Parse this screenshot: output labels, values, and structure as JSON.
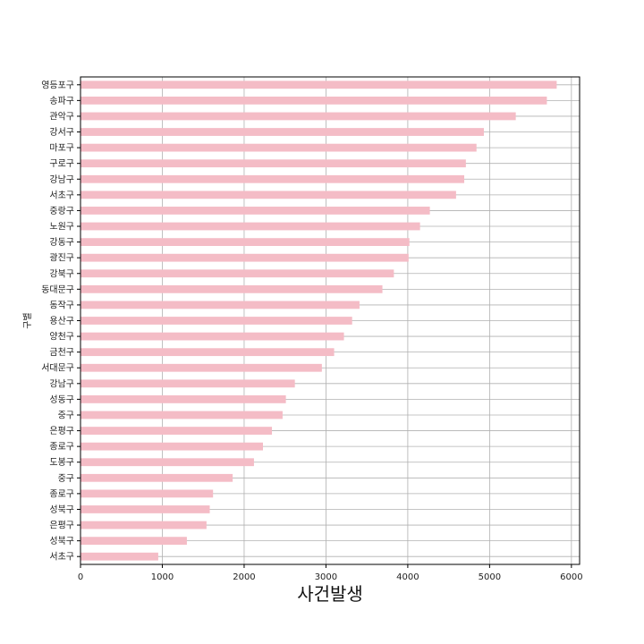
{
  "chart_data": {
    "type": "bar",
    "orientation": "horizontal",
    "xlabel": "사건발생",
    "ylabel": "구별",
    "xlim": [
      0,
      6100
    ],
    "xticks": [
      0,
      1000,
      2000,
      3000,
      4000,
      5000,
      6000
    ],
    "grid": true,
    "bar_color": "#f4bcc6",
    "categories": [
      "영등포구",
      "송파구",
      "관악구",
      "강서구",
      "마포구",
      "구로구",
      "강남구",
      "서초구",
      "중랑구",
      "노원구",
      "강동구",
      "광진구",
      "강북구",
      "동대문구",
      "동작구",
      "용산구",
      "양천구",
      "금천구",
      "서대문구",
      "강남구",
      "성동구",
      "중구",
      "은평구",
      "종로구",
      "도봉구",
      "중구",
      "종로구",
      "성북구",
      "은평구",
      "성북구",
      "서초구"
    ],
    "values": [
      5820,
      5700,
      5320,
      4930,
      4840,
      4710,
      4690,
      4590,
      4270,
      4150,
      4020,
      4010,
      3830,
      3690,
      3410,
      3320,
      3220,
      3100,
      2950,
      2620,
      2510,
      2470,
      2340,
      2230,
      2120,
      1860,
      1620,
      1580,
      1540,
      1300,
      950
    ]
  }
}
